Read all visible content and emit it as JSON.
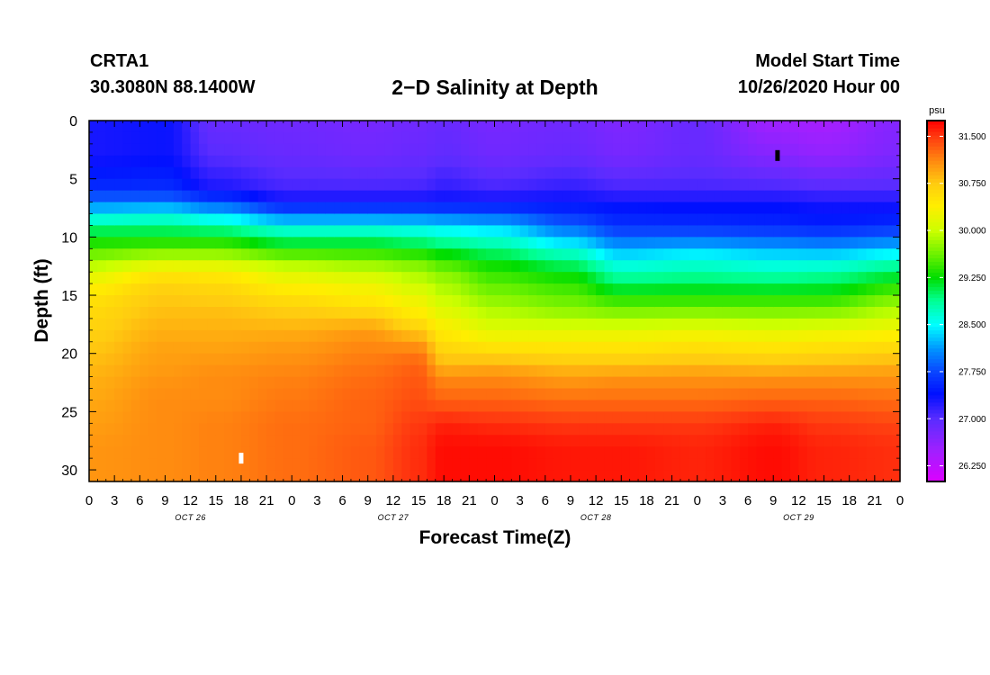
{
  "header": {
    "station": "CRTA1",
    "coords": "30.3080N 88.1400W",
    "title": "2−D Salinity at Depth",
    "model_start_label": "Model Start Time",
    "model_start_value": "10/26/2020 Hour 00"
  },
  "chart_data": {
    "type": "heatmap",
    "title": "2−D Salinity at Depth",
    "xlabel": "Forecast Time(Z)",
    "ylabel": "Depth (ft)",
    "x_ticks": [
      "0",
      "3",
      "6",
      "9",
      "12",
      "15",
      "18",
      "21",
      "0",
      "3",
      "6",
      "9",
      "12",
      "15",
      "18",
      "21",
      "0",
      "3",
      "6",
      "9",
      "12",
      "15",
      "18",
      "21",
      "0",
      "3",
      "6",
      "9",
      "12",
      "15",
      "18",
      "21",
      "0"
    ],
    "day_labels": [
      {
        "label": "OCT 26",
        "hour": 12
      },
      {
        "label": "OCT 27",
        "hour": 36
      },
      {
        "label": "OCT 28",
        "hour": 60
      },
      {
        "label": "OCT 29",
        "hour": 84
      }
    ],
    "x_range_hours": [
      0,
      96
    ],
    "y_ticks": [
      0,
      5,
      10,
      15,
      20,
      25,
      30
    ],
    "y_range_ft": [
      0,
      31
    ],
    "y_inverted": true,
    "colorbar": {
      "units": "psu",
      "range": [
        26.0,
        31.75
      ],
      "tick_labels": [
        "31.500",
        "30.750",
        "30.000",
        "29.250",
        "28.500",
        "27.750",
        "27.000",
        "26.250"
      ],
      "tick_values": [
        31.5,
        30.75,
        30.0,
        29.25,
        28.5,
        27.75,
        27.0,
        26.25
      ],
      "stops": [
        {
          "value": 26.0,
          "color": "#dd00ff"
        },
        {
          "value": 26.5,
          "color": "#a020ff"
        },
        {
          "value": 27.0,
          "color": "#5a2cff"
        },
        {
          "value": 27.4,
          "color": "#0010ff"
        },
        {
          "value": 27.75,
          "color": "#0a45ff"
        },
        {
          "value": 28.1,
          "color": "#0090ff"
        },
        {
          "value": 28.5,
          "color": "#00ffff"
        },
        {
          "value": 28.9,
          "color": "#00ff90"
        },
        {
          "value": 29.25,
          "color": "#00dd00"
        },
        {
          "value": 29.6,
          "color": "#66f000"
        },
        {
          "value": 30.0,
          "color": "#ccff00"
        },
        {
          "value": 30.4,
          "color": "#ffee00"
        },
        {
          "value": 30.75,
          "color": "#ffcc10"
        },
        {
          "value": 31.1,
          "color": "#ff8c10"
        },
        {
          "value": 31.5,
          "color": "#ff3a10"
        },
        {
          "value": 31.75,
          "color": "#ff0000"
        }
      ]
    },
    "profile_depths_ft": [
      0,
      3,
      6,
      7,
      8,
      9,
      10,
      11,
      12,
      13,
      14,
      15,
      16,
      17,
      18,
      19,
      20,
      21,
      22,
      24,
      26,
      28,
      31
    ],
    "profiles": [
      {
        "hour": 0,
        "values": [
          27.3,
          27.3,
          27.6,
          28.0,
          28.4,
          28.9,
          29.2,
          29.5,
          29.8,
          30.1,
          30.35,
          30.5,
          30.6,
          30.65,
          30.7,
          30.75,
          30.8,
          30.85,
          30.9,
          30.95,
          31.0,
          31.05,
          31.05
        ]
      },
      {
        "hour": 9,
        "values": [
          27.35,
          27.35,
          27.6,
          28.0,
          28.5,
          28.9,
          29.2,
          29.6,
          30.0,
          30.45,
          30.65,
          30.75,
          30.8,
          30.85,
          30.9,
          30.95,
          31.0,
          31.0,
          31.05,
          31.1,
          31.1,
          31.1,
          31.1
        ]
      },
      {
        "hour": 15,
        "values": [
          26.9,
          27.0,
          27.3,
          27.8,
          28.3,
          28.8,
          29.2,
          29.6,
          30.0,
          30.4,
          30.6,
          30.7,
          30.8,
          30.85,
          30.9,
          30.95,
          31.0,
          31.05,
          31.1,
          31.1,
          31.15,
          31.15,
          31.15
        ]
      },
      {
        "hour": 24,
        "values": [
          26.85,
          26.9,
          27.1,
          27.4,
          27.9,
          28.5,
          28.9,
          29.3,
          29.8,
          30.1,
          30.35,
          30.5,
          30.7,
          30.8,
          30.9,
          31.0,
          31.05,
          31.1,
          31.15,
          31.2,
          31.25,
          31.25,
          31.25
        ]
      },
      {
        "hour": 33,
        "values": [
          26.8,
          26.85,
          27.1,
          27.4,
          27.9,
          28.5,
          28.9,
          29.3,
          29.7,
          30.0,
          30.25,
          30.4,
          30.55,
          30.8,
          31.0,
          31.1,
          31.15,
          31.2,
          31.25,
          31.3,
          31.3,
          31.35,
          31.35
        ]
      },
      {
        "hour": 39,
        "values": [
          26.85,
          26.9,
          27.1,
          27.4,
          27.9,
          28.45,
          28.8,
          29.2,
          29.6,
          29.85,
          30.0,
          30.2,
          30.35,
          30.5,
          30.75,
          31.0,
          31.2,
          31.3,
          31.35,
          31.4,
          31.5,
          31.55,
          31.55
        ]
      },
      {
        "hour": 42,
        "values": [
          26.9,
          26.95,
          27.2,
          27.4,
          27.85,
          28.4,
          28.7,
          29.1,
          29.4,
          29.7,
          29.85,
          29.95,
          30.1,
          30.25,
          30.4,
          30.55,
          30.7,
          30.85,
          31.1,
          31.3,
          31.6,
          31.7,
          31.7
        ]
      },
      {
        "hour": 48,
        "values": [
          26.8,
          26.85,
          27.1,
          27.4,
          27.8,
          28.3,
          28.6,
          28.9,
          29.2,
          29.4,
          29.55,
          29.7,
          29.85,
          30.0,
          30.15,
          30.4,
          30.65,
          30.9,
          31.1,
          31.3,
          31.55,
          31.7,
          31.7
        ]
      },
      {
        "hour": 57,
        "values": [
          26.85,
          26.9,
          27.2,
          27.4,
          27.6,
          27.9,
          28.2,
          28.6,
          28.9,
          29.2,
          29.4,
          29.55,
          29.7,
          29.9,
          30.15,
          30.4,
          30.6,
          30.8,
          31.0,
          31.25,
          31.5,
          31.65,
          31.65
        ]
      },
      {
        "hour": 63,
        "values": [
          26.75,
          26.8,
          27.1,
          27.35,
          27.5,
          27.6,
          27.9,
          28.2,
          28.5,
          28.75,
          29.0,
          29.3,
          29.6,
          29.85,
          30.15,
          30.4,
          30.6,
          30.8,
          31.05,
          31.25,
          31.5,
          31.65,
          31.65
        ]
      },
      {
        "hour": 72,
        "values": [
          26.9,
          26.9,
          27.1,
          27.35,
          27.45,
          27.6,
          27.9,
          28.3,
          28.6,
          28.8,
          29.05,
          29.3,
          29.6,
          29.9,
          30.2,
          30.45,
          30.65,
          30.85,
          31.05,
          31.25,
          31.5,
          31.6,
          31.6
        ]
      },
      {
        "hour": 81,
        "values": [
          26.5,
          26.7,
          27.1,
          27.35,
          27.45,
          27.55,
          27.85,
          28.2,
          28.5,
          28.75,
          29.0,
          29.3,
          29.6,
          29.85,
          30.15,
          30.4,
          30.6,
          30.8,
          31.05,
          31.3,
          31.6,
          31.7,
          31.7
        ]
      },
      {
        "hour": 87,
        "values": [
          26.45,
          26.6,
          27.05,
          27.3,
          27.4,
          27.5,
          27.8,
          28.15,
          28.5,
          28.8,
          29.05,
          29.3,
          29.6,
          29.9,
          30.2,
          30.45,
          30.65,
          30.85,
          31.05,
          31.3,
          31.5,
          31.6,
          31.6
        ]
      },
      {
        "hour": 96,
        "values": [
          26.7,
          26.75,
          27.05,
          27.3,
          27.4,
          27.6,
          27.9,
          28.3,
          28.7,
          29.0,
          29.3,
          29.6,
          29.85,
          30.05,
          30.3,
          30.5,
          30.7,
          30.9,
          31.05,
          31.25,
          31.45,
          31.55,
          31.55
        ]
      }
    ],
    "markers": [
      {
        "hour": 18,
        "depth_ft": 29.0,
        "color": "#ffffff"
      },
      {
        "hour": 81.5,
        "depth_ft": 3.0,
        "color": "#000000"
      }
    ]
  }
}
